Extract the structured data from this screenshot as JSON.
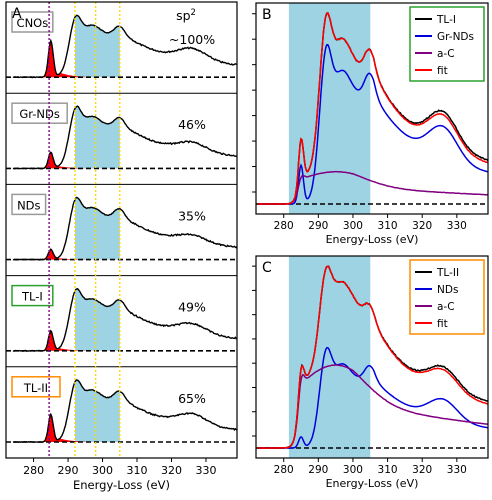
{
  "chart_data": [
    {
      "panel_letter": "A",
      "type": "line",
      "xlabel": "Energy-Loss (eV)",
      "xlim": [
        272,
        339
      ],
      "x_ticks": [
        280,
        290,
        300,
        310,
        320,
        330
      ],
      "shaded_region_ev": [
        292,
        305
      ],
      "guide_lines_ev": [
        {
          "x": 284.5,
          "color": "#8b008b"
        },
        {
          "x": 292,
          "color": "#ffd700"
        },
        {
          "x": 298,
          "color": "#ffd700"
        },
        {
          "x": 305,
          "color": "#ffd700"
        }
      ],
      "spectra": [
        {
          "label": "CNOs",
          "label_border": "#999999",
          "sp2": "~100%",
          "header": "sp",
          "header_sup": "2",
          "pi_height": 0.42,
          "sigma_height": 0.95,
          "tail_height": 0.33
        },
        {
          "label": "Gr-NDs",
          "label_border": "#999999",
          "sp2": "46%",
          "pi_height": 0.18,
          "sigma_height": 0.93,
          "tail_height": 0.25
        },
        {
          "label": "NDs",
          "label_border": "#999999",
          "sp2": "35%",
          "pi_height": 0.12,
          "sigma_height": 0.98,
          "tail_height": 0.22
        },
        {
          "label": "TL-I",
          "label_border": "#2ca02c",
          "sp2": "49%",
          "pi_height": 0.22,
          "sigma_height": 0.92,
          "tail_height": 0.28
        },
        {
          "label": "TL-II",
          "label_border": "#ff8c00",
          "sp2": "65%",
          "pi_height": 0.3,
          "sigma_height": 0.9,
          "tail_height": 0.3
        }
      ]
    },
    {
      "panel_letter": "B",
      "type": "line",
      "xlabel": "Energy-Loss (eV)",
      "xlim": [
        272,
        339
      ],
      "x_ticks": [
        280,
        290,
        300,
        310,
        320,
        330
      ],
      "shaded_region_ev": [
        281.5,
        305
      ],
      "legend_position": "top-right",
      "legend_border": "#2ca02c",
      "series": [
        {
          "name": "TL-I",
          "color": "#000000"
        },
        {
          "name": "Gr-NDs",
          "color": "#0000dd"
        },
        {
          "name": "a-C",
          "color": "#800080"
        },
        {
          "name": "fit",
          "color": "#ff0000"
        }
      ]
    },
    {
      "panel_letter": "C",
      "type": "line",
      "xlabel": "Energy-Loss (eV)",
      "xlim": [
        272,
        339
      ],
      "x_ticks": [
        280,
        290,
        300,
        310,
        320,
        330
      ],
      "shaded_region_ev": [
        281.5,
        305
      ],
      "legend_position": "top-right",
      "legend_border": "#ff8c00",
      "series": [
        {
          "name": "TL-II",
          "color": "#000000"
        },
        {
          "name": "NDs",
          "color": "#0000dd"
        },
        {
          "name": "a-C",
          "color": "#800080"
        },
        {
          "name": "fit",
          "color": "#ff0000"
        }
      ]
    }
  ]
}
